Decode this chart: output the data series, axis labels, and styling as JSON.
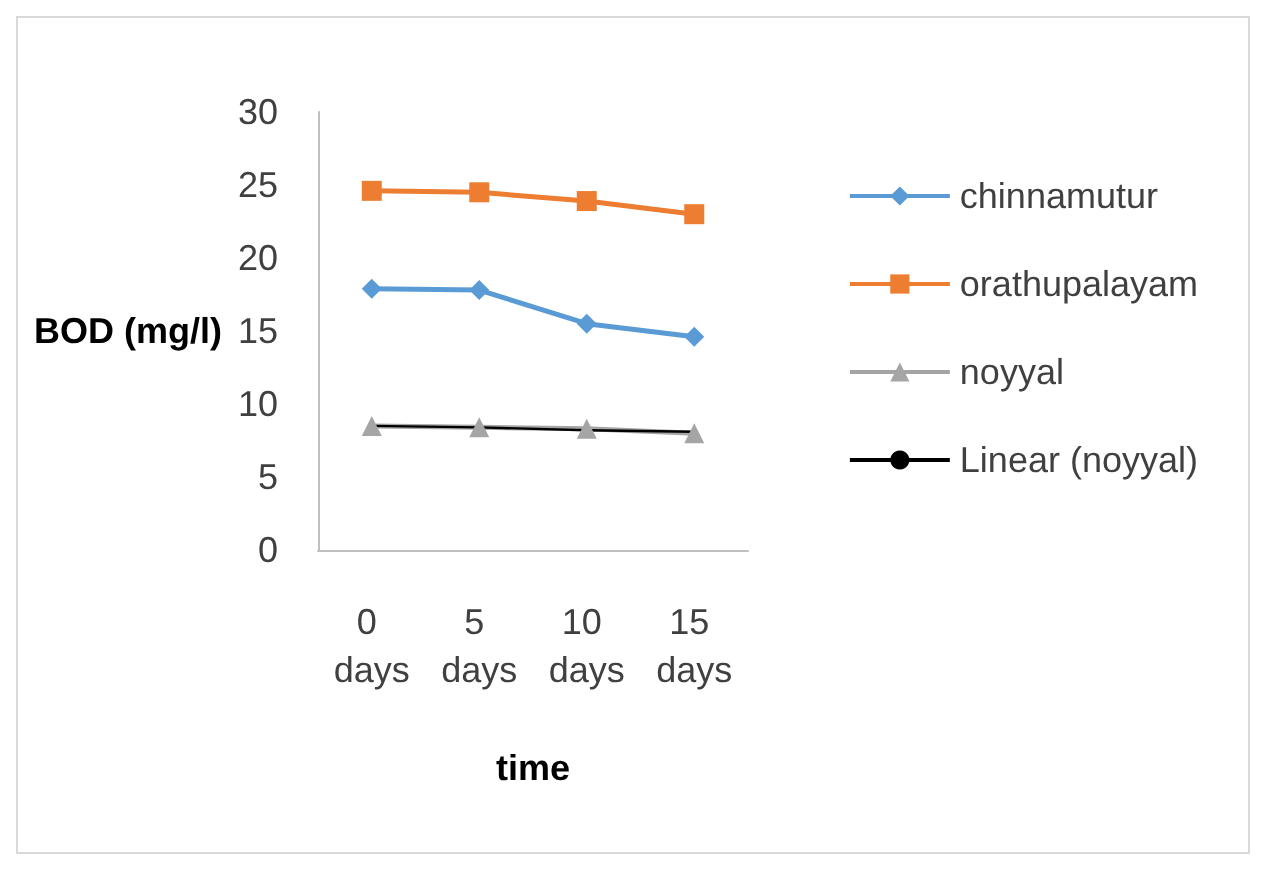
{
  "chart_data": {
    "type": "line",
    "xlabel": "time",
    "ylabel": "BOD (mg/l)",
    "categories": [
      "0 days",
      "5 days",
      "10 days",
      "15 days"
    ],
    "series": [
      {
        "name": "chinnamutur",
        "color": "#5b9bd5",
        "marker": "diamond",
        "values": [
          17.9,
          17.8,
          15.5,
          14.6
        ]
      },
      {
        "name": "orathupalayam",
        "color": "#ed7d31",
        "marker": "square",
        "values": [
          24.6,
          24.5,
          23.9,
          23.0
        ]
      },
      {
        "name": "noyyal",
        "color": "#a5a5a5",
        "marker": "triangle",
        "values": [
          8.5,
          8.4,
          8.3,
          8.0
        ]
      },
      {
        "name": "Linear (noyyal)",
        "color": "#000000",
        "marker": "none",
        "values": [
          8.5,
          8.4,
          8.2,
          8.1
        ]
      }
    ],
    "ylim": [
      0,
      30
    ],
    "yticks": [
      0,
      5,
      10,
      15,
      20,
      25,
      30
    ],
    "grid": false,
    "legend": "right"
  }
}
